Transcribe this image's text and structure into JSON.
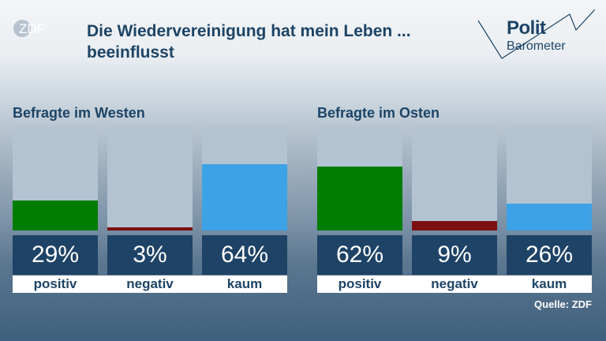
{
  "header": {
    "logo_text": "ZDF",
    "title": "Die Wiedervereinigung hat mein Leben ... beeinflusst",
    "brand_line1": "Polit",
    "brand_line2": "Barometer"
  },
  "source": "Quelle: ZDF",
  "chart_data": {
    "type": "bar",
    "title": "Die Wiedervereinigung hat mein Leben ... beeinflusst",
    "categories": [
      "positiv",
      "negativ",
      "kaum"
    ],
    "ylim": [
      0,
      100
    ],
    "unit": "%",
    "groups": [
      {
        "name": "Befragte im Westen",
        "values": [
          29,
          3,
          64
        ],
        "labels": [
          "29%",
          "3%",
          "64%"
        ]
      },
      {
        "name": "Befragte im Osten",
        "values": [
          62,
          9,
          26
        ],
        "labels": [
          "62%",
          "9%",
          "26%"
        ]
      }
    ],
    "colors": [
      "#007d00",
      "#7a1010",
      "#3da3e6"
    ]
  }
}
